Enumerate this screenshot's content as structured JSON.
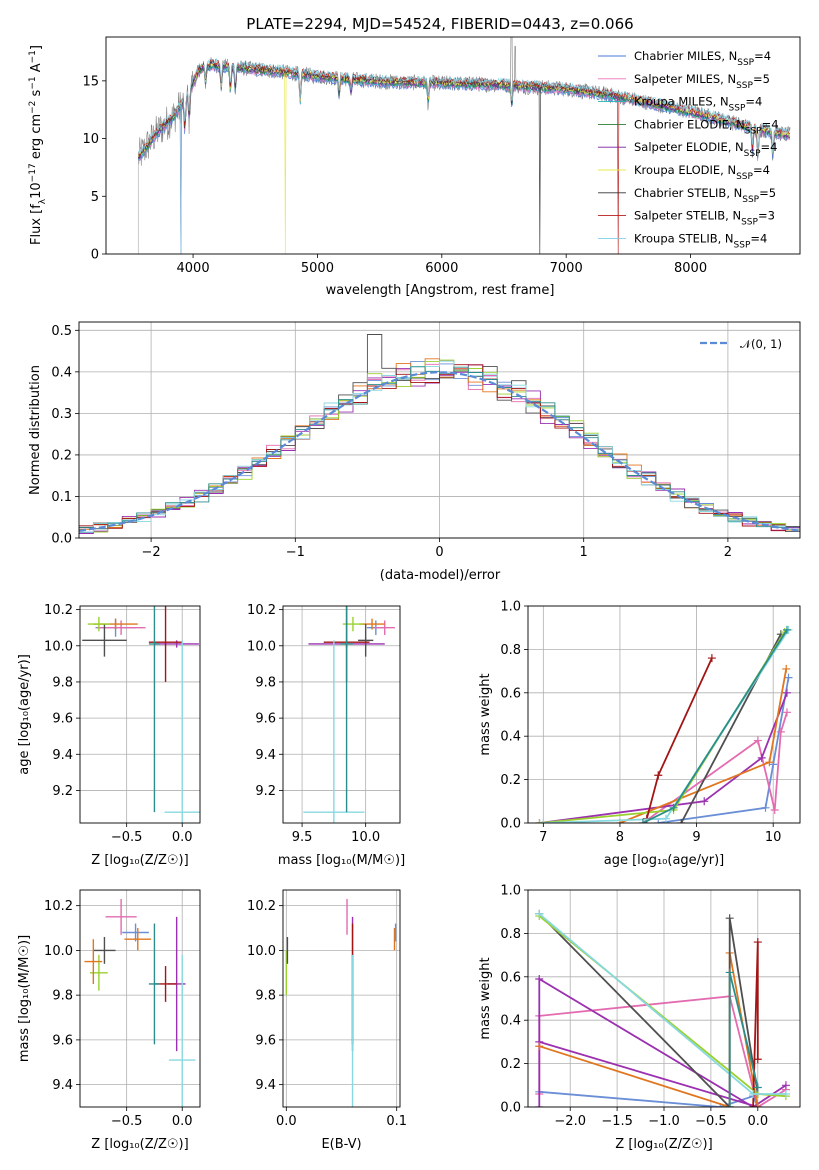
{
  "colors": {
    "series": [
      "#4a78d9",
      "#ee70b8",
      "#22b6b3",
      "#2e7d32",
      "#7b1fa2",
      "#e8e84a",
      "#333333",
      "#b71c1c",
      "#7fd0e6"
    ],
    "panel_extra": [
      "#6a8fd6",
      "#e36bb0",
      "#9b30b0",
      "#e0761e",
      "#4f4f4f",
      "#9ad12e",
      "#a31515",
      "#88d8e0",
      "#2c8e8a"
    ],
    "gaussian": "#5b8ad6",
    "grid": "#b0b0b0",
    "gray_spectrum": "#808080"
  },
  "chart_data": [
    {
      "id": "spectrum",
      "type": "line",
      "title": "PLATE=2294, MJD=54524, FIBERID=0443, z=0.066",
      "xlabel": "wavelength [Angstrom, rest frame]",
      "ylabel": "Flux [fλ10⁻¹⁷ erg cm⁻² s⁻¹ A⁻¹]",
      "xlim": [
        3300,
        8880
      ],
      "ylim": [
        0,
        18.8
      ],
      "xticks": [
        4000,
        5000,
        6000,
        7000,
        8000
      ],
      "yticks": [
        0,
        5,
        10,
        15
      ],
      "xtick_labels": [
        "4000",
        "5000",
        "6000",
        "7000",
        "8000"
      ],
      "ytick_labels": [
        "0",
        "5",
        "10",
        "15"
      ],
      "grid": false,
      "legend_position": "top-right",
      "continuum_x": [
        3550,
        3700,
        3850,
        3950,
        4050,
        4150,
        4300,
        4500,
        4700,
        5000,
        5300,
        5600,
        6000,
        6400,
        6700,
        7000,
        7400,
        7800,
        8200,
        8500,
        8800
      ],
      "continuum_y": [
        8.2,
        10.4,
        12.0,
        13.6,
        16.0,
        16.4,
        16.2,
        16.0,
        15.8,
        15.4,
        15.1,
        14.9,
        14.8,
        14.7,
        14.5,
        14.3,
        13.7,
        12.8,
        11.8,
        10.9,
        10.3
      ],
      "series": [
        {
          "name": "Chabrier MILES, N",
          "sub": "SSP",
          "suffix": "=4"
        },
        {
          "name": "Salpeter MILES, N",
          "sub": "SSP",
          "suffix": "=5"
        },
        {
          "name": "Kroupa MILES, N",
          "sub": "SSP",
          "suffix": "=4"
        },
        {
          "name": "Chabrier ELODIE, N",
          "sub": "SSP",
          "suffix": "=4"
        },
        {
          "name": "Salpeter ELODIE, N",
          "sub": "SSP",
          "suffix": "=4"
        },
        {
          "name": "Kroupa ELODIE, N",
          "sub": "SSP",
          "suffix": "=4"
        },
        {
          "name": "Chabrier STELIB, N",
          "sub": "SSP",
          "suffix": "=5"
        },
        {
          "name": "Salpeter STELIB, N",
          "sub": "SSP",
          "suffix": "=3"
        },
        {
          "name": "Kroupa STELIB, N",
          "sub": "SSP",
          "suffix": "=4"
        }
      ],
      "model_drops_x": [
        3900,
        4740,
        6790,
        7420
      ]
    },
    {
      "id": "residuals",
      "type": "histogram",
      "xlabel": "(data-model)/error",
      "ylabel": "Normed distribution",
      "xlim": [
        -2.5,
        2.5
      ],
      "ylim": [
        0,
        0.52
      ],
      "xticks": [
        -2,
        -1,
        0,
        1,
        2
      ],
      "yticks": [
        0.0,
        0.1,
        0.2,
        0.3,
        0.4,
        0.5
      ],
      "xtick_labels": [
        "−2",
        "−1",
        "0",
        "1",
        "2"
      ],
      "ytick_labels": [
        "0.0",
        "0.1",
        "0.2",
        "0.3",
        "0.4",
        "0.5"
      ],
      "grid": true,
      "legend_position": "top-right",
      "legend_label": "𝒩(0, 1)",
      "bin_width": 0.1,
      "bins_from": -2.5,
      "spike_at": -0.45,
      "spike_value": 0.49
    },
    {
      "id": "age_vs_Z",
      "type": "errorbar",
      "xlabel": "Z [log₁₀(Z/Z☉)]",
      "ylabel": "age  [log₁₀(age/yr)]",
      "xlim": [
        -0.92,
        0.16
      ],
      "ylim": [
        9.02,
        10.22
      ],
      "xticks": [
        -0.5,
        0.0
      ],
      "yticks": [
        9.2,
        9.4,
        9.6,
        9.8,
        10.0,
        10.2
      ],
      "xtick_labels": [
        "−0.5",
        "0.0"
      ],
      "ytick_labels": [
        "9.2",
        "9.4",
        "9.6",
        "9.8",
        "10.0",
        "10.2"
      ],
      "grid": true,
      "points": [
        {
          "x": -0.6,
          "xe": 0.18,
          "y": 10.1,
          "ye": 0.05,
          "c": 0
        },
        {
          "x": -0.55,
          "xe": 0.22,
          "y": 10.1,
          "ye": 0.04,
          "c": 1
        },
        {
          "x": -0.05,
          "xe": 0.2,
          "y": 10.01,
          "ye": 0.02,
          "c": 2
        },
        {
          "x": -0.6,
          "xe": 0.2,
          "y": 10.12,
          "ye": 0.03,
          "c": 3
        },
        {
          "x": -0.7,
          "xe": 0.2,
          "y": 10.03,
          "ye": 0.09,
          "c": 4
        },
        {
          "x": -0.75,
          "xe": 0.1,
          "y": 10.12,
          "ye": 0.04,
          "c": 5
        },
        {
          "x": -0.15,
          "xe": 0.15,
          "y": 10.02,
          "ye": 0.22,
          "c": 6
        },
        {
          "x": 0.0,
          "xe": 0.16,
          "y": 9.08,
          "ye": 0.95,
          "c": 7
        },
        {
          "x": -0.25,
          "xe": 0.05,
          "y": 10.01,
          "ye": 0.93,
          "c": 8
        }
      ]
    },
    {
      "id": "age_vs_mass",
      "type": "errorbar",
      "xlabel": "mass [log₁₀(M/M☉)]",
      "ylabel": "",
      "xlim": [
        9.35,
        10.27
      ],
      "ylim": [
        9.02,
        10.22
      ],
      "xticks": [
        9.5,
        10.0
      ],
      "yticks": [
        9.2,
        9.4,
        9.6,
        9.8,
        10.0,
        10.2
      ],
      "xtick_labels": [
        "9.5",
        "10.0"
      ],
      "ytick_labels": [
        "9.2",
        "9.4",
        "9.6",
        "9.8",
        "10.0",
        "10.2"
      ],
      "grid": true,
      "points": [
        {
          "x": 10.08,
          "xe": 0.07,
          "y": 10.1,
          "ye": 0.04,
          "c": 0
        },
        {
          "x": 10.15,
          "xe": 0.08,
          "y": 10.1,
          "ye": 0.04,
          "c": 1
        },
        {
          "x": 9.85,
          "xe": 0.3,
          "y": 10.01,
          "ye": 0.02,
          "c": 2
        },
        {
          "x": 10.05,
          "xe": 0.1,
          "y": 10.12,
          "ye": 0.03,
          "c": 3
        },
        {
          "x": 10.0,
          "xe": 0.06,
          "y": 10.03,
          "ye": 0.09,
          "c": 4
        },
        {
          "x": 9.9,
          "xe": 0.08,
          "y": 10.12,
          "ye": 0.04,
          "c": 5
        },
        {
          "x": 9.85,
          "xe": 0.18,
          "y": 10.02,
          "ye": 0.22,
          "c": 6
        },
        {
          "x": 9.75,
          "xe": 0.24,
          "y": 9.08,
          "ye": 0.95,
          "c": 7
        },
        {
          "x": 9.85,
          "xe": 0.05,
          "y": 10.01,
          "ye": 0.93,
          "c": 8
        }
      ]
    },
    {
      "id": "massweight_vs_age",
      "type": "line",
      "xlabel": "age  [log₁₀(age/yr)]",
      "ylabel": "mass weight",
      "xlim": [
        6.8,
        10.35
      ],
      "ylim": [
        0,
        1.0
      ],
      "xticks": [
        7,
        8,
        9,
        10
      ],
      "yticks": [
        0.0,
        0.2,
        0.4,
        0.6,
        0.8,
        1.0
      ],
      "xtick_labels": [
        "7",
        "8",
        "9",
        "10"
      ],
      "ytick_labels": [
        "0.0",
        "0.2",
        "0.4",
        "0.6",
        "0.8",
        "1.0"
      ],
      "grid": true,
      "series": [
        {
          "c": 0,
          "x": [
            8.5,
            9.9,
            10.0,
            10.2
          ],
          "y": [
            0.0,
            0.07,
            0.27,
            0.67
          ]
        },
        {
          "c": 1,
          "x": [
            8.3,
            9.8,
            10.02,
            10.1,
            10.18
          ],
          "y": [
            0.0,
            0.38,
            0.06,
            0.42,
            0.51
          ]
        },
        {
          "c": 2,
          "x": [
            6.95,
            9.1,
            9.85,
            10.18
          ],
          "y": [
            0.0,
            0.1,
            0.3,
            0.6
          ]
        },
        {
          "c": 3,
          "x": [
            8.0,
            9.95,
            10.17
          ],
          "y": [
            0.0,
            0.28,
            0.71
          ]
        },
        {
          "c": 4,
          "x": [
            8.8,
            10.1
          ],
          "y": [
            0.0,
            0.87
          ]
        },
        {
          "c": 5,
          "x": [
            6.95,
            8.7,
            10.15
          ],
          "y": [
            0.0,
            0.06,
            0.88
          ]
        },
        {
          "c": 6,
          "x": [
            8.35,
            8.5,
            9.2
          ],
          "y": [
            0.02,
            0.22,
            0.76
          ]
        },
        {
          "c": 7,
          "x": [
            7.0,
            8.6,
            10.2
          ],
          "y": [
            0.0,
            0.02,
            0.89
          ]
        },
        {
          "c": 8,
          "x": [
            8.3,
            8.7,
            10.18
          ],
          "y": [
            0.0,
            0.07,
            0.89
          ]
        }
      ]
    },
    {
      "id": "mass_vs_Z",
      "type": "errorbar",
      "xlabel": "Z [log₁₀(Z/Z☉)]",
      "ylabel": "mass [log₁₀(M/M☉)]",
      "xlim": [
        -0.92,
        0.16
      ],
      "ylim": [
        9.3,
        10.27
      ],
      "xticks": [
        -0.5,
        0.0
      ],
      "yticks": [
        9.4,
        9.6,
        9.8,
        10.0,
        10.2
      ],
      "xtick_labels": [
        "−0.5",
        "0.0"
      ],
      "ytick_labels": [
        "9.4",
        "9.6",
        "9.8",
        "10.0",
        "10.2"
      ],
      "grid": true,
      "points": [
        {
          "x": -0.42,
          "xe": 0.12,
          "y": 10.08,
          "ye": 0.04,
          "c": 0
        },
        {
          "x": -0.55,
          "xe": 0.14,
          "y": 10.15,
          "ye": 0.08,
          "c": 1
        },
        {
          "x": -0.05,
          "xe": 0.08,
          "y": 9.85,
          "ye": 0.3,
          "c": 2
        },
        {
          "x": -0.4,
          "xe": 0.12,
          "y": 10.05,
          "ye": 0.05,
          "c": 3
        },
        {
          "x": -0.7,
          "xe": 0.1,
          "y": 10.0,
          "ye": 0.06,
          "c": 4
        },
        {
          "x": -0.75,
          "xe": 0.08,
          "y": 9.9,
          "ye": 0.08,
          "c": 5
        },
        {
          "x": -0.15,
          "xe": 0.1,
          "y": 9.85,
          "ye": 0.08,
          "c": 6
        },
        {
          "x": 0.0,
          "xe": 0.12,
          "y": 9.51,
          "ye": 0.47,
          "c": 7
        },
        {
          "x": -0.25,
          "xe": 0.05,
          "y": 9.85,
          "ye": 0.27,
          "c": 8
        },
        {
          "x": -0.8,
          "xe": 0.08,
          "y": 9.95,
          "ye": 0.1,
          "c": 3
        }
      ]
    },
    {
      "id": "mass_vs_EBV",
      "type": "errorbar",
      "xlabel": "E(B-V)",
      "ylabel": "",
      "xlim": [
        -0.003,
        0.103
      ],
      "ylim": [
        9.3,
        10.27
      ],
      "xticks": [
        0.0,
        0.1
      ],
      "yticks": [
        9.4,
        9.6,
        9.8,
        10.0,
        10.2
      ],
      "xtick_labels": [
        "0.0",
        "0.1"
      ],
      "ytick_labels": [
        "9.4",
        "9.6",
        "9.8",
        "10.0",
        "10.2"
      ],
      "grid": true,
      "points": [
        {
          "x": 0.0,
          "xe": 0.0,
          "y": 9.9,
          "ye": 0.1,
          "c": 5
        },
        {
          "x": 0.001,
          "xe": 0.0,
          "y": 10.0,
          "ye": 0.06,
          "c": 4
        },
        {
          "x": 0.055,
          "xe": 0.0,
          "y": 10.15,
          "ye": 0.08,
          "c": 1
        },
        {
          "x": 0.06,
          "xe": 0.0,
          "y": 9.85,
          "ye": 0.3,
          "c": 2
        },
        {
          "x": 0.06,
          "xe": 0.0,
          "y": 9.85,
          "ye": 0.27,
          "c": 6
        },
        {
          "x": 0.06,
          "xe": 0.0,
          "y": 9.51,
          "ye": 0.47,
          "c": 7
        },
        {
          "x": 0.098,
          "xe": 0.0,
          "y": 10.05,
          "ye": 0.05,
          "c": 3
        },
        {
          "x": 0.099,
          "xe": 0.0,
          "y": 10.08,
          "ye": 0.04,
          "c": 0
        }
      ]
    },
    {
      "id": "massweight_vs_Z",
      "type": "line",
      "xlabel": "Z [log₁₀(Z/Z☉)]",
      "ylabel": "mass weight",
      "xlim": [
        -2.45,
        0.45
      ],
      "ylim": [
        0,
        1.0
      ],
      "xticks": [
        -2.0,
        -1.5,
        -1.0,
        -0.5,
        0.0
      ],
      "yticks": [
        0.0,
        0.2,
        0.4,
        0.6,
        0.8,
        1.0
      ],
      "xtick_labels": [
        "−2.0",
        "−1.5",
        "−1.0",
        "−0.5",
        "0.0"
      ],
      "ytick_labels": [
        "0.0",
        "0.2",
        "0.4",
        "0.6",
        "0.8",
        "1.0"
      ],
      "grid": true,
      "series": [
        {
          "c": 0,
          "x": [
            -2.33,
            -0.4,
            -0.05,
            0.0
          ],
          "y": [
            0.07,
            0.0,
            0.05,
            0.0
          ]
        },
        {
          "c": 1,
          "x": [
            -2.33,
            -2.33,
            -0.3,
            0.0,
            0.3
          ],
          "y": [
            0.06,
            0.42,
            0.51,
            0.0,
            0.08
          ]
        },
        {
          "c": 2,
          "x": [
            -2.33,
            -2.33,
            -0.05,
            0.3
          ],
          "y": [
            0.0,
            0.59,
            0.0,
            0.1
          ]
        },
        {
          "c": 2,
          "x": [
            -2.33,
            0.0
          ],
          "y": [
            0.3,
            0.0
          ]
        },
        {
          "c": 3,
          "x": [
            -2.33,
            -0.3,
            -0.3,
            0.0
          ],
          "y": [
            0.28,
            0.0,
            0.71,
            0.0
          ]
        },
        {
          "c": 4,
          "x": [
            -2.33,
            -0.3,
            -0.3,
            0.0
          ],
          "y": [
            0.89,
            0.0,
            0.87,
            0.06
          ]
        },
        {
          "c": 5,
          "x": [
            -2.33,
            0.0,
            0.3
          ],
          "y": [
            0.88,
            0.06,
            0.05
          ]
        },
        {
          "c": 6,
          "x": [
            -0.05,
            0.0,
            0.0
          ],
          "y": [
            0.0,
            0.76,
            0.22
          ]
        },
        {
          "c": 7,
          "x": [
            -2.33,
            -0.05,
            0.3
          ],
          "y": [
            0.89,
            0.06,
            0.06
          ]
        },
        {
          "c": 8,
          "x": [
            -0.3,
            -0.3,
            0.0
          ],
          "y": [
            0.0,
            0.62,
            0.09
          ]
        }
      ]
    }
  ]
}
